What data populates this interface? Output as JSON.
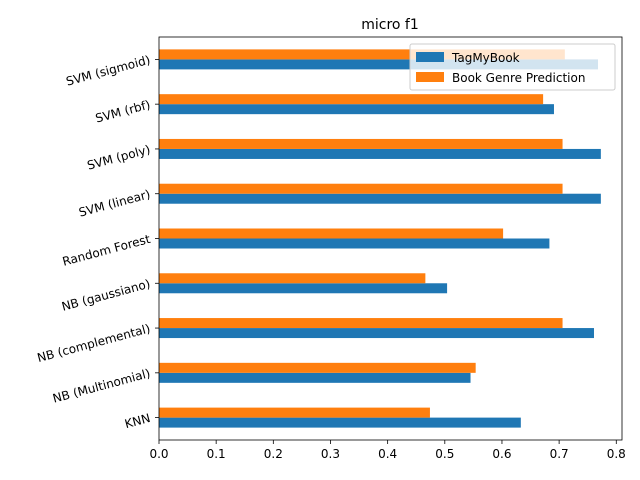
{
  "chart_data": {
    "type": "bar",
    "orientation": "horizontal",
    "title": "micro f1",
    "xlabel": "",
    "ylabel": "",
    "xlim": [
      0.0,
      0.81
    ],
    "x_ticks": [
      "0.0",
      "0.1",
      "0.2",
      "0.3",
      "0.4",
      "0.5",
      "0.6",
      "0.7",
      "0.8"
    ],
    "grid": false,
    "legend_position": "top-right",
    "categories": [
      "KNN",
      "NB (Multinomial)",
      "NB (complemental)",
      "NB (gaussiano)",
      "Random Forest",
      "SVM (linear)",
      "SVM (poly)",
      "SVM (rbf)",
      "SVM (sigmoid)"
    ],
    "series": [
      {
        "name": "TagMyBook",
        "color": "#1f77b4",
        "values": [
          0.633,
          0.545,
          0.761,
          0.504,
          0.683,
          0.773,
          0.773,
          0.691,
          0.768
        ]
      },
      {
        "name": "Book Genre Prediction",
        "color": "#ff7f0e",
        "values": [
          0.474,
          0.554,
          0.706,
          0.466,
          0.602,
          0.706,
          0.706,
          0.672,
          0.71
        ]
      }
    ]
  }
}
